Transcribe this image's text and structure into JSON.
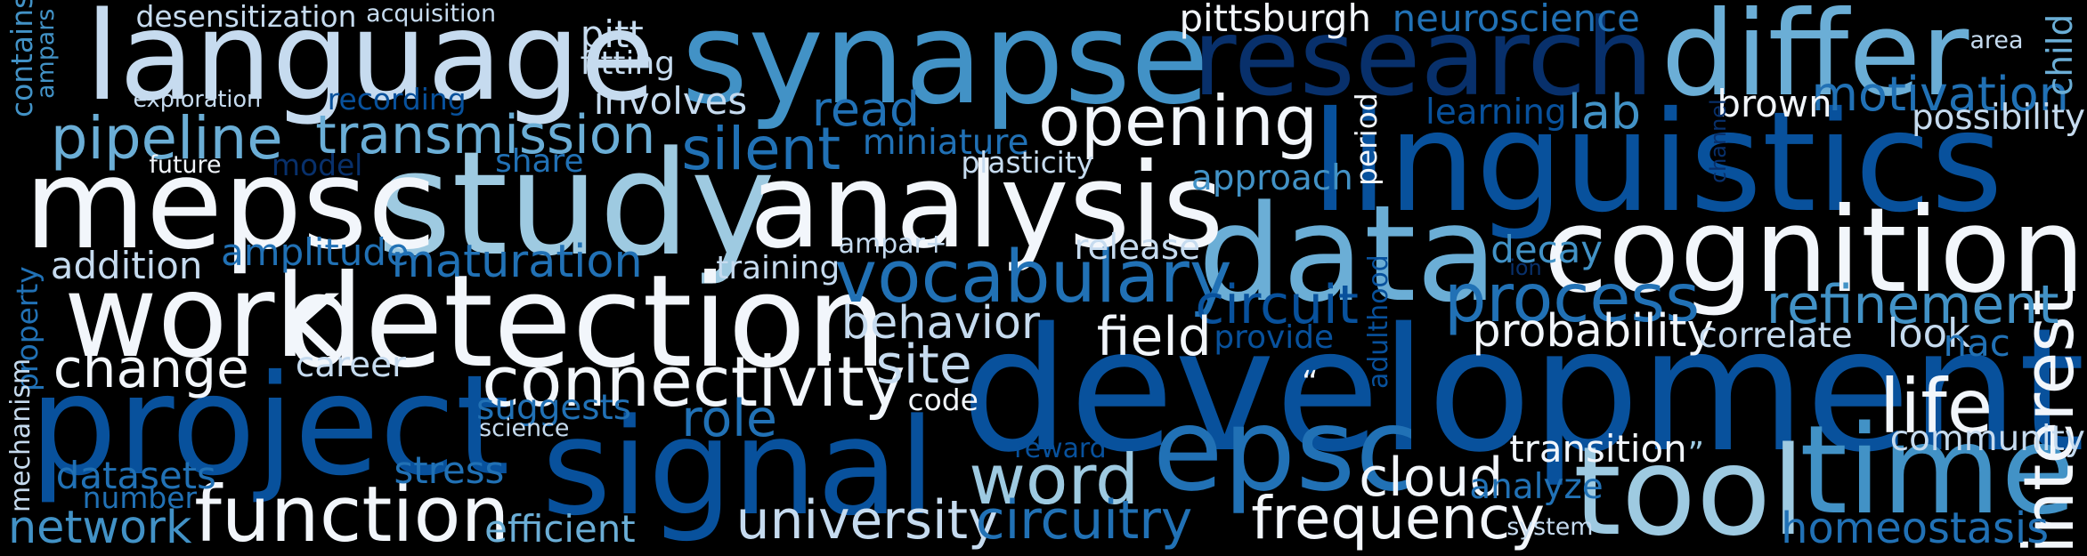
{
  "words": {
    "development": "development",
    "study": "study",
    "linguistics": "linguistics",
    "synapse": "synapse",
    "language": "language",
    "detection": "detection",
    "mepsc": "mepsc",
    "project": "project",
    "signal": "signal",
    "data": "data",
    "research": "research",
    "analysis": "analysis",
    "cognition": "cognition",
    "differ": "differ",
    "time": "time",
    "tool": "tool",
    "work": "work",
    "epsc": "epsc",
    "connectivity": "connectivity",
    "function": "function",
    "vocabulary": "vocabulary",
    "pipeline": "pipeline",
    "transmission": "transmission",
    "opening": "opening",
    "process": "process",
    "life": "life",
    "interest": "interest",
    "word": "word",
    "frequency": "frequency",
    "university": "university",
    "circuitry": "circuitry",
    "refinement": "refinement",
    "silent": "silent",
    "motivation": "motivation",
    "change": "change",
    "circuit": "circuit",
    "field": "field",
    "site": "site",
    "behavior": "behavior",
    "probability": "probability",
    "cloud": "cloud",
    "maturation": "maturation",
    "role": "role",
    "homeostasis": "homeostasis",
    "network": "network",
    "lab": "lab",
    "read": "read",
    "pittsburgh": "pittsburgh",
    "neuroscience": "neuroscience",
    "addition": "addition",
    "amplitude": "amplitude",
    "transition": "transition",
    "datasets": "datasets",
    "stress": "stress",
    "efficient": "efficient",
    "look": "look",
    "brown": "brown",
    "decay": "decay",
    "learning": "learning",
    "possibility": "possibility",
    "community": "community",
    "correlate": "correlate",
    "nac": "nac",
    "involves": "involves",
    "miniature": "miniature",
    "approach": "approach",
    "release": "release",
    "analyze": "analyze",
    "suggests": "suggests",
    "training": "training",
    "fitting": "fitting",
    "pitt": "pitt",
    "share": "share",
    "career": "career",
    "desensitization": "desensitization",
    "recording": "recording",
    "plasticity": "plasticity",
    "provide": "provide",
    "number": "number",
    "code": "code",
    "model": "model",
    "acquisition": "acquisition",
    "exploration": "exploration",
    "future": "future",
    "ampar_plus": "ampar+",
    "reward": "reward",
    "science": "science",
    "system": "system",
    "area": "area",
    "ion": "ion",
    "quote_open": "“",
    "quote_close": "”",
    "contains": "contains",
    "ampars": "ampars",
    "property": "property",
    "mechanism": "mechanism",
    "child": "child",
    "period": "period",
    "adulthood": "adulthood",
    "channel": "channel"
  }
}
